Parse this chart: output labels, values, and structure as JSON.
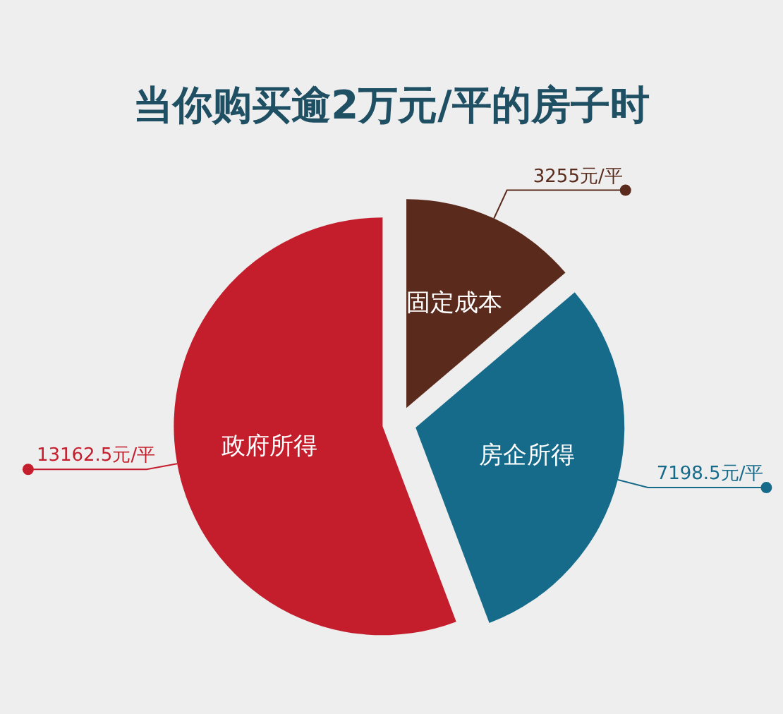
{
  "chart_data": {
    "type": "pie",
    "title": "当你购买逾2万元/平的房子时",
    "categories": [
      "固定成本",
      "房企所得",
      "政府所得"
    ],
    "values": [
      3255,
      7198.5,
      13162.5
    ],
    "value_labels": [
      "3255元/平",
      "7198.5元/平",
      "13162.5元/平"
    ],
    "colors": [
      "#5a2a1c",
      "#166a8a",
      "#c41e2d"
    ]
  }
}
